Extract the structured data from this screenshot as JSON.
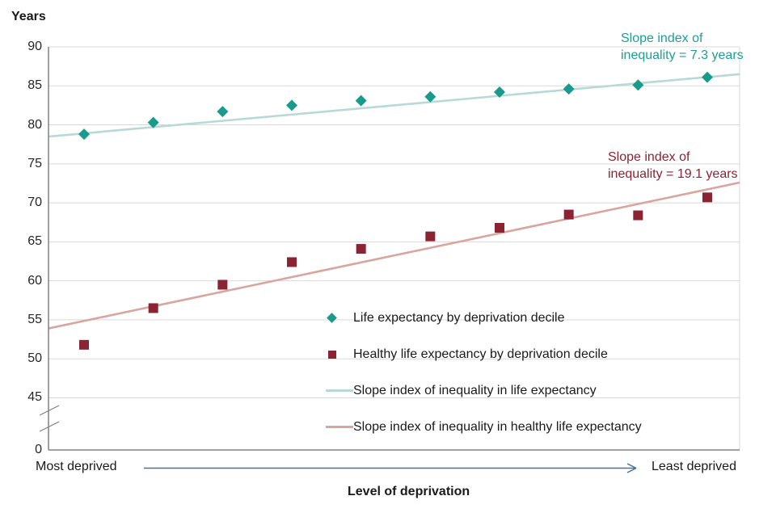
{
  "chart_data": {
    "type": "scatter",
    "title": "",
    "ylabel": "Years",
    "xlabel": "Level of deprivation",
    "x_axis_endpoints": [
      "Most deprived",
      "Least deprived"
    ],
    "x": [
      1,
      2,
      3,
      4,
      5,
      6,
      7,
      8,
      9,
      10
    ],
    "y_ticks": [
      90,
      85,
      80,
      75,
      70,
      65,
      60,
      55,
      50,
      45,
      0
    ],
    "y_axis_break": true,
    "ylim_displayed": [
      45,
      90
    ],
    "grid": true,
    "legend_position": "inside-lower-middle",
    "series": [
      {
        "name": "Life expectancy by deprivation decile",
        "marker": "diamond",
        "color": "#189B8C",
        "values": [
          78.8,
          80.3,
          81.7,
          82.5,
          83.1,
          83.6,
          84.2,
          84.6,
          85.1,
          86.1
        ]
      },
      {
        "name": "Healthy life expectancy by deprivation decile",
        "marker": "square",
        "color": "#8B2332",
        "values": [
          51.8,
          56.5,
          59.5,
          62.4,
          64.1,
          65.7,
          66.8,
          68.5,
          68.4,
          70.7
        ]
      }
    ],
    "trend_lines": [
      {
        "name": "Slope index of inequality in life expectancy",
        "color": "#B7DAD4",
        "start_value": 78.5,
        "end_value": 86.5,
        "sii_years": 7.3
      },
      {
        "name": "Slope index of inequality in healthy life expectancy",
        "color": "#D8A69F",
        "start_value": 53.9,
        "end_value": 72.6,
        "sii_years": 19.1
      }
    ],
    "annotations": [
      {
        "line1": "Slope index of",
        "line2": "inequality = 7.3 years",
        "color": "#1D9E96"
      },
      {
        "line1": "Slope index of",
        "line2": "inequality = 19.1 years",
        "color": "#8B2332"
      }
    ],
    "colors": {
      "gridline": "#D9D9D9",
      "axis": "#808080",
      "arrow": "#41719C",
      "text": "#1a1a1a"
    }
  }
}
